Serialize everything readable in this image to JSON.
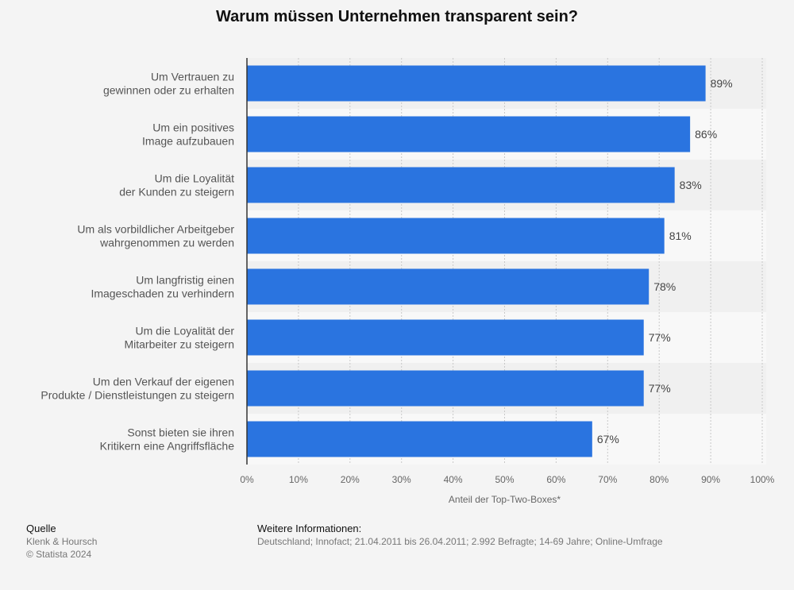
{
  "chart_data": {
    "type": "bar",
    "orientation": "horizontal",
    "title": "Warum müssen Unternehmen transparent sein?",
    "categories": [
      [
        "Um Vertrauen zu",
        "gewinnen oder zu erhalten"
      ],
      [
        "Um ein positives",
        "Image aufzubauen"
      ],
      [
        "Um die Loyalität",
        "der Kunden zu steigern"
      ],
      [
        "Um als vorbildlicher Arbeitgeber",
        "wahrgenommen zu werden"
      ],
      [
        "Um langfristig einen",
        "Imageschaden zu verhindern"
      ],
      [
        "Um die Loyalität der",
        "Mitarbeiter zu steigern"
      ],
      [
        "Um den Verkauf der eigenen",
        "Produkte / Dienstleistungen zu steigern"
      ],
      [
        "Sonst bieten sie ihren",
        "Kritikern eine Angriffsfläche"
      ]
    ],
    "values": [
      89,
      86,
      83,
      81,
      78,
      77,
      77,
      67
    ],
    "value_labels": [
      "89%",
      "86%",
      "83%",
      "81%",
      "78%",
      "77%",
      "77%",
      "67%"
    ],
    "xlabel": "Anteil der Top-Two-Boxes*",
    "xlim": [
      0,
      100
    ],
    "ticks": [
      0,
      10,
      20,
      30,
      40,
      50,
      60,
      70,
      80,
      90,
      100
    ],
    "tick_labels": [
      "0%",
      "10%",
      "20%",
      "30%",
      "40%",
      "50%",
      "60%",
      "70%",
      "80%",
      "90%",
      "100%"
    ],
    "grid": true,
    "bar_color": "#2a74e0"
  },
  "footer": {
    "source_heading": "Quelle",
    "source_name": "Klenk & Hoursch",
    "copyright": "© Statista 2024",
    "info_heading": "Weitere Informationen:",
    "info_text": "Deutschland; Innofact; 21.04.2011 bis 26.04.2011; 2.992 Befragte; 14-69 Jahre; Online-Umfrage"
  }
}
